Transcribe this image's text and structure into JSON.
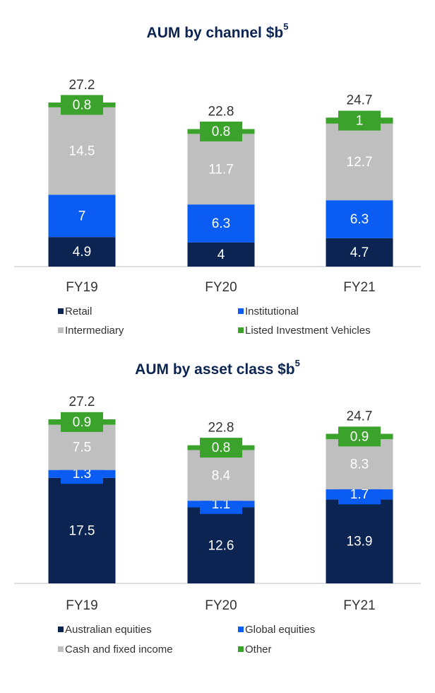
{
  "chart_data": [
    {
      "type": "stacked_bar",
      "title": "AUM by channel $b",
      "title_note": "5",
      "categories": [
        "FY19",
        "FY20",
        "FY21"
      ],
      "series": [
        {
          "name": "Retail",
          "color": "#0b2452",
          "values": [
            4.9,
            4.0,
            4.7
          ]
        },
        {
          "name": "Institutional",
          "color": "#0b5cf2",
          "values": [
            7.0,
            6.3,
            6.3
          ]
        },
        {
          "name": "Intermediary",
          "color": "#bfbfbf",
          "values": [
            14.5,
            11.7,
            12.7
          ]
        },
        {
          "name": "Listed Investment Vehicles",
          "color": "#3ba22c",
          "values": [
            0.8,
            0.8,
            1.0
          ]
        }
      ],
      "totals": [
        27.2,
        22.8,
        24.7
      ],
      "ylim": [
        0,
        30
      ]
    },
    {
      "type": "stacked_bar",
      "title": "AUM by asset class $b",
      "title_note": "5",
      "categories": [
        "FY19",
        "FY20",
        "FY21"
      ],
      "series": [
        {
          "name": "Australian equities",
          "color": "#0b2452",
          "values": [
            17.5,
            12.6,
            13.9
          ]
        },
        {
          "name": "Global equities",
          "color": "#0b5cf2",
          "values": [
            1.3,
            1.1,
            1.7
          ]
        },
        {
          "name": "Cash and fixed income",
          "color": "#bfbfbf",
          "values": [
            7.5,
            8.4,
            8.3
          ]
        },
        {
          "name": "Other",
          "color": "#3ba22c",
          "values": [
            0.9,
            0.8,
            0.9
          ]
        }
      ],
      "totals": [
        27.2,
        22.8,
        24.7
      ],
      "ylim": [
        0,
        30
      ]
    }
  ]
}
